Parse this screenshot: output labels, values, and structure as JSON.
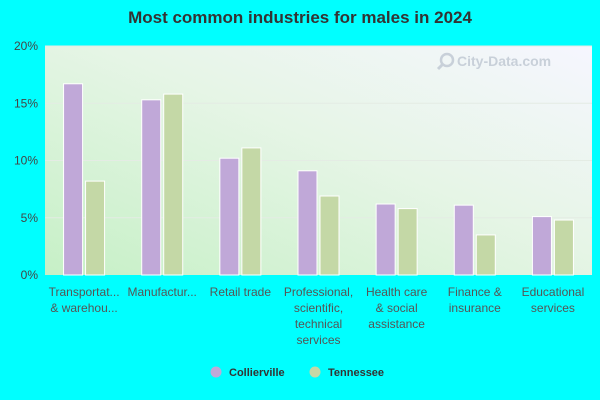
{
  "chart_data": {
    "type": "bar",
    "title": "Most common industries for males in 2024",
    "ylim": [
      0,
      20
    ],
    "yticks": [
      0,
      5,
      10,
      15,
      20
    ],
    "ytick_labels": [
      "0%",
      "5%",
      "10%",
      "15%",
      "20%"
    ],
    "grid": true,
    "legend_position": "bottom",
    "categories": [
      [
        "Transportat...",
        "& warehou..."
      ],
      [
        "Manufactur..."
      ],
      [
        "Retail trade"
      ],
      [
        "Professional,",
        "scientific,",
        "technical",
        "services"
      ],
      [
        "Health care",
        "& social",
        "assistance"
      ],
      [
        "Finance &",
        "insurance"
      ],
      [
        "Educational",
        "services"
      ]
    ],
    "series": [
      {
        "name": "Collierville",
        "color": "#c0a8d8",
        "values": [
          16.7,
          15.3,
          10.2,
          9.1,
          6.2,
          6.1,
          5.1
        ]
      },
      {
        "name": "Tennessee",
        "color": "#c4d8a6",
        "values": [
          8.2,
          15.8,
          11.1,
          6.9,
          5.8,
          3.5,
          4.8
        ]
      }
    ]
  },
  "watermark": {
    "text": "City-Data.com",
    "icon": "magnifier-icon"
  }
}
